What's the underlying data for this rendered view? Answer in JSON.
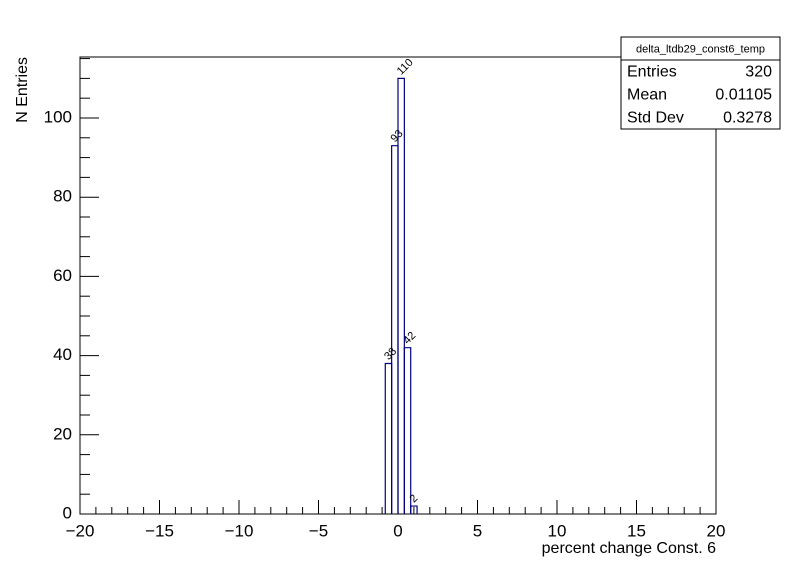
{
  "chart_data": {
    "type": "histogram",
    "x_label": "percent change Const. 6",
    "y_label": "N Entries",
    "bins": [
      -0.8,
      -0.4,
      0,
      0.4,
      0.8,
      1.2
    ],
    "values": [
      38,
      93,
      110,
      42,
      2
    ],
    "color": "#000080",
    "xlim": [
      -20,
      20
    ],
    "xticks": [
      {
        "value": -20,
        "label": "−20"
      },
      {
        "value": -15,
        "label": "−15"
      },
      {
        "value": -10,
        "label": "−10"
      },
      {
        "value": -5,
        "label": "−5"
      },
      0,
      5,
      10,
      15,
      20
    ],
    "ylim": [
      0,
      115.4
    ],
    "yticks": [
      0,
      20,
      40,
      60,
      80,
      100
    ],
    "stats": {
      "title": "delta_ltdb29_const6_temp",
      "rows": [
        [
          "Entries",
          320
        ],
        [
          "Mean",
          0.01105
        ],
        [
          "Std Dev",
          0.3278
        ]
      ]
    }
  }
}
